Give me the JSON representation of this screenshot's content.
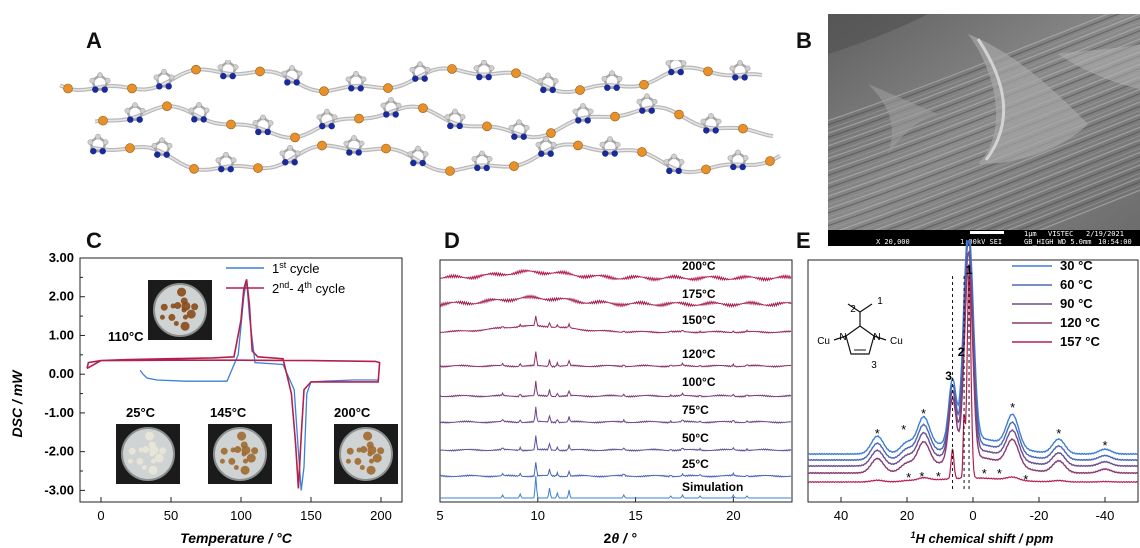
{
  "panels": {
    "a": "A",
    "b": "B",
    "c": "C",
    "d": "D",
    "e": "E"
  },
  "sem_info": {
    "scale": "1μm",
    "institute": "VISTEC",
    "date": "2/19/2021",
    "magnification": "X 20,000",
    "voltage": "1.00kV SEI",
    "settings": "GB_HIGH   WD 5.0mm",
    "time": "10:54:00"
  },
  "colors": {
    "cycle1": "#3d7fd6",
    "cycle2": "#b4204e",
    "copper": "#e8902a",
    "nitrogen": "#1a2a9a",
    "carbon": "#cfcfcf"
  },
  "charts": {
    "c": {
      "chart_data": {
        "type": "line",
        "xlabel": "Temperature / °C",
        "ylabel": "DSC / mW",
        "xlim": [
          -15,
          215
        ],
        "ylim": [
          -3.3,
          3.0
        ],
        "xticks": [
          "0",
          "50",
          "100",
          "150",
          "200"
        ],
        "yticks": [
          "3.00",
          "2.00",
          "1.00",
          "0.00",
          "-1.00",
          "-2.00",
          "-3.00"
        ],
        "legend": [
          "1st cycle",
          "2nd- 4th cycle"
        ],
        "legend_parts": {
          "l1_main": "1",
          "l1_sup": "st",
          "l1_rest": " cycle",
          "l2_main": "2",
          "l2_sup": "nd",
          "l2_rest": "- 4",
          "l2_sup2": "th",
          "l2_rest2": " cycle"
        },
        "series": [
          {
            "name": "1st cycle",
            "x": [
              28,
              30,
              33,
              40,
              60,
              80,
              90,
              98,
              102,
              104,
              106,
              110,
              130,
              138,
              141,
              143,
              145,
              147,
              150,
              160,
              180,
              198
            ],
            "y": [
              0.1,
              0.0,
              -0.1,
              -0.15,
              -0.18,
              -0.18,
              -0.18,
              0.5,
              2.0,
              2.42,
              1.5,
              0.3,
              0.25,
              -0.4,
              -2.0,
              -3.0,
              -2.4,
              -0.5,
              -0.2,
              -0.18,
              -0.15,
              -0.15
            ]
          },
          {
            "name": "2nd- 4th cycle",
            "x": [
              -10,
              -9,
              0,
              20,
              50,
              80,
              95,
              100,
              102,
              104,
              106,
              108,
              112,
              130,
              136,
              139,
              141,
              143,
              145,
              150,
              170,
              198,
              199,
              196,
              150,
              100,
              50,
              0,
              -10
            ],
            "y": [
              0.15,
              0.3,
              0.35,
              0.38,
              0.4,
              0.42,
              0.45,
              1.4,
              2.2,
              2.45,
              1.8,
              0.6,
              0.45,
              0.4,
              -0.5,
              -1.8,
              -2.95,
              -1.6,
              -0.4,
              -0.2,
              -0.2,
              -0.2,
              0.3,
              0.33,
              0.35,
              0.36,
              0.36,
              0.35,
              0.15
            ]
          }
        ]
      },
      "insets": [
        {
          "label": "110°C"
        },
        {
          "label": "25°C"
        },
        {
          "label": "145°C"
        },
        {
          "label": "200°C"
        }
      ]
    },
    "d": {
      "chart_data": {
        "type": "line",
        "xlabel": "2θ / °",
        "xlabel_parts": {
          "main": "2",
          "theta": "θ",
          "unit": " / °"
        },
        "xlim": [
          5,
          23
        ],
        "xticks": [
          "5",
          "10",
          "15",
          "20"
        ],
        "series": [
          {
            "name": "200°C"
          },
          {
            "name": "175°C"
          },
          {
            "name": "150°C"
          },
          {
            "name": "120°C"
          },
          {
            "name": "100°C"
          },
          {
            "name": "75°C"
          },
          {
            "name": "50°C"
          },
          {
            "name": "25°C"
          },
          {
            "name": "Simulation"
          }
        ],
        "peaks_2theta": [
          8.2,
          9.1,
          9.9,
          10.6,
          11.0,
          11.6,
          14.4,
          16.8,
          17.4,
          18.3,
          20.0,
          20.7
        ]
      }
    },
    "e": {
      "chart_data": {
        "type": "line",
        "xlabel": "1H chemical shift / ppm",
        "xlabel_parts": {
          "sup": "1",
          "main": "H chemical shift / ppm"
        },
        "xlim": [
          50,
          -50
        ],
        "xticks": [
          "40",
          "20",
          "0",
          "-20",
          "-40"
        ],
        "series": [
          {
            "name": "30 °C"
          },
          {
            "name": "60 °C"
          },
          {
            "name": "90 °C"
          },
          {
            "name": "120 °C"
          },
          {
            "name": "157 °C"
          }
        ],
        "peak_labels": [
          "1",
          "2",
          "3"
        ],
        "sideband_marker": "*",
        "structure_labels": {
          "cu_left": "Cu",
          "cu_right": "Cu",
          "n": "N",
          "c1": "1",
          "c2": "2",
          "c3": "3"
        }
      }
    }
  }
}
